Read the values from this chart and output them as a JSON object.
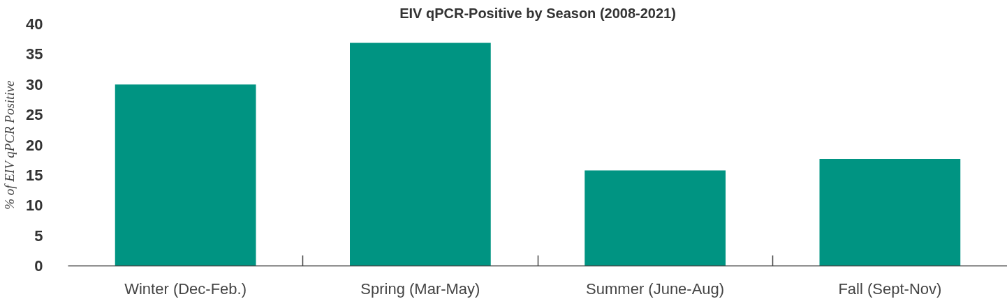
{
  "chart_data": {
    "type": "bar",
    "title": "EIV qPCR-Positive by Season (2008-2021)",
    "ylabel": "% of EIV qPCR Positive",
    "categories": [
      "Winter (Dec-Feb.)",
      "Spring (Mar-May)",
      "Summer (June-Aug)",
      "Fall (Sept-Nov)"
    ],
    "values": [
      30,
      36.9,
      15.8,
      17.7
    ],
    "color": "#009482",
    "ylim": [
      0,
      40
    ],
    "yticks": [
      0,
      5,
      10,
      15,
      20,
      25,
      30,
      35,
      40
    ],
    "grid": false
  }
}
